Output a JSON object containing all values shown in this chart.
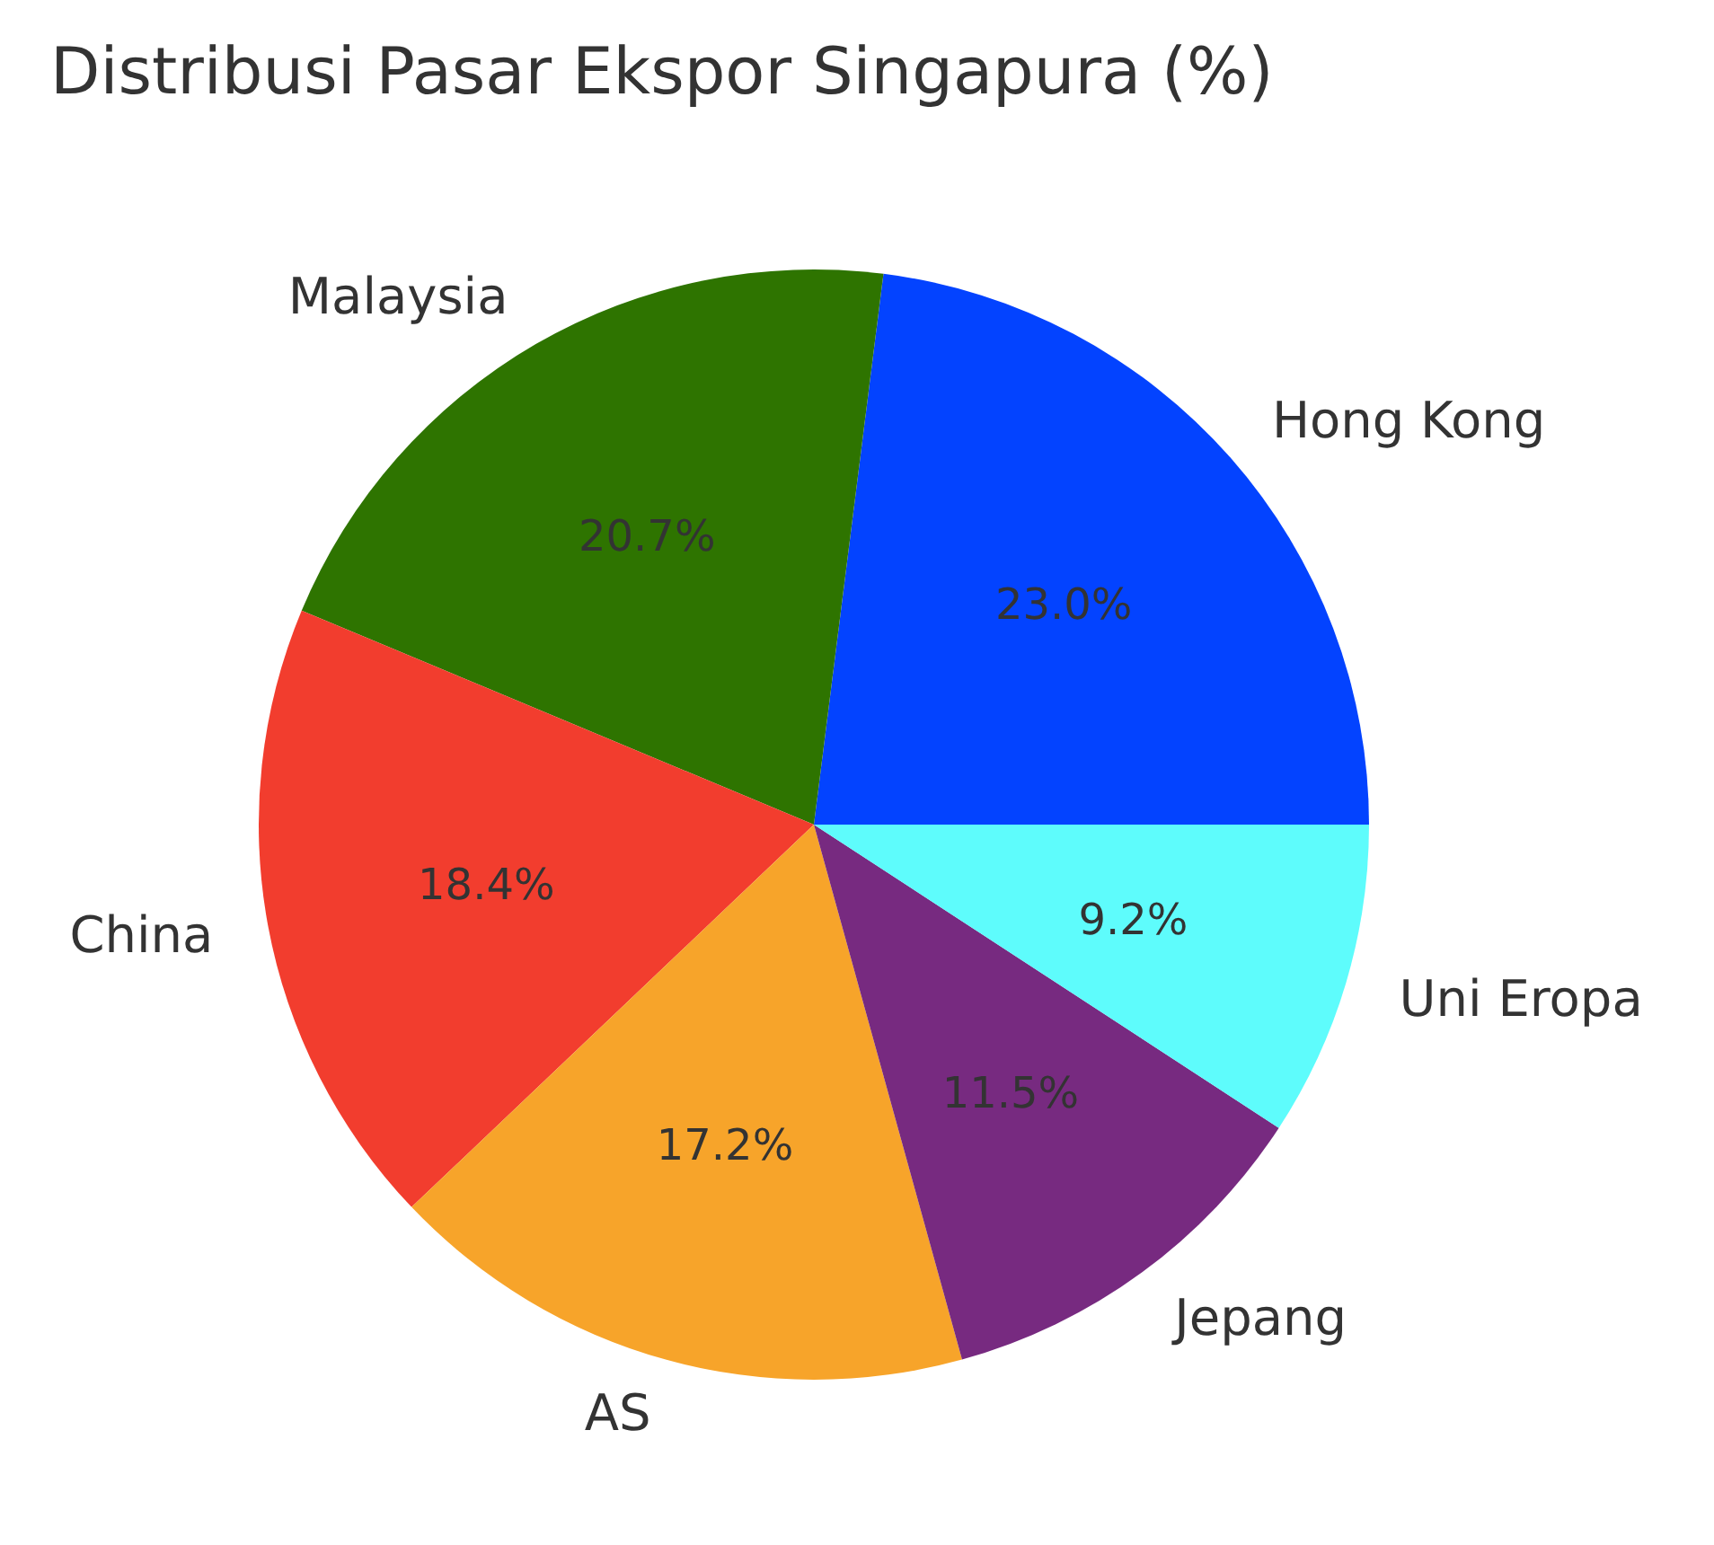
{
  "chart_data": {
    "type": "pie",
    "title": "Distribusi Pasar Ekspor Singapura (%)",
    "categories": [
      "Hong Kong",
      "Malaysia",
      "China",
      "AS",
      "Jepang",
      "Uni Eropa"
    ],
    "values": [
      23.0,
      20.7,
      18.4,
      17.2,
      11.5,
      9.2
    ],
    "colors": [
      "#0343ff",
      "#2e7400",
      "#f23d2e",
      "#f7a42a",
      "#772a80",
      "#5efcfc"
    ],
    "value_labels": [
      "23.0%",
      "20.7%",
      "18.4%",
      "17.2%",
      "11.5%",
      "9.2%"
    ],
    "legend": false
  }
}
